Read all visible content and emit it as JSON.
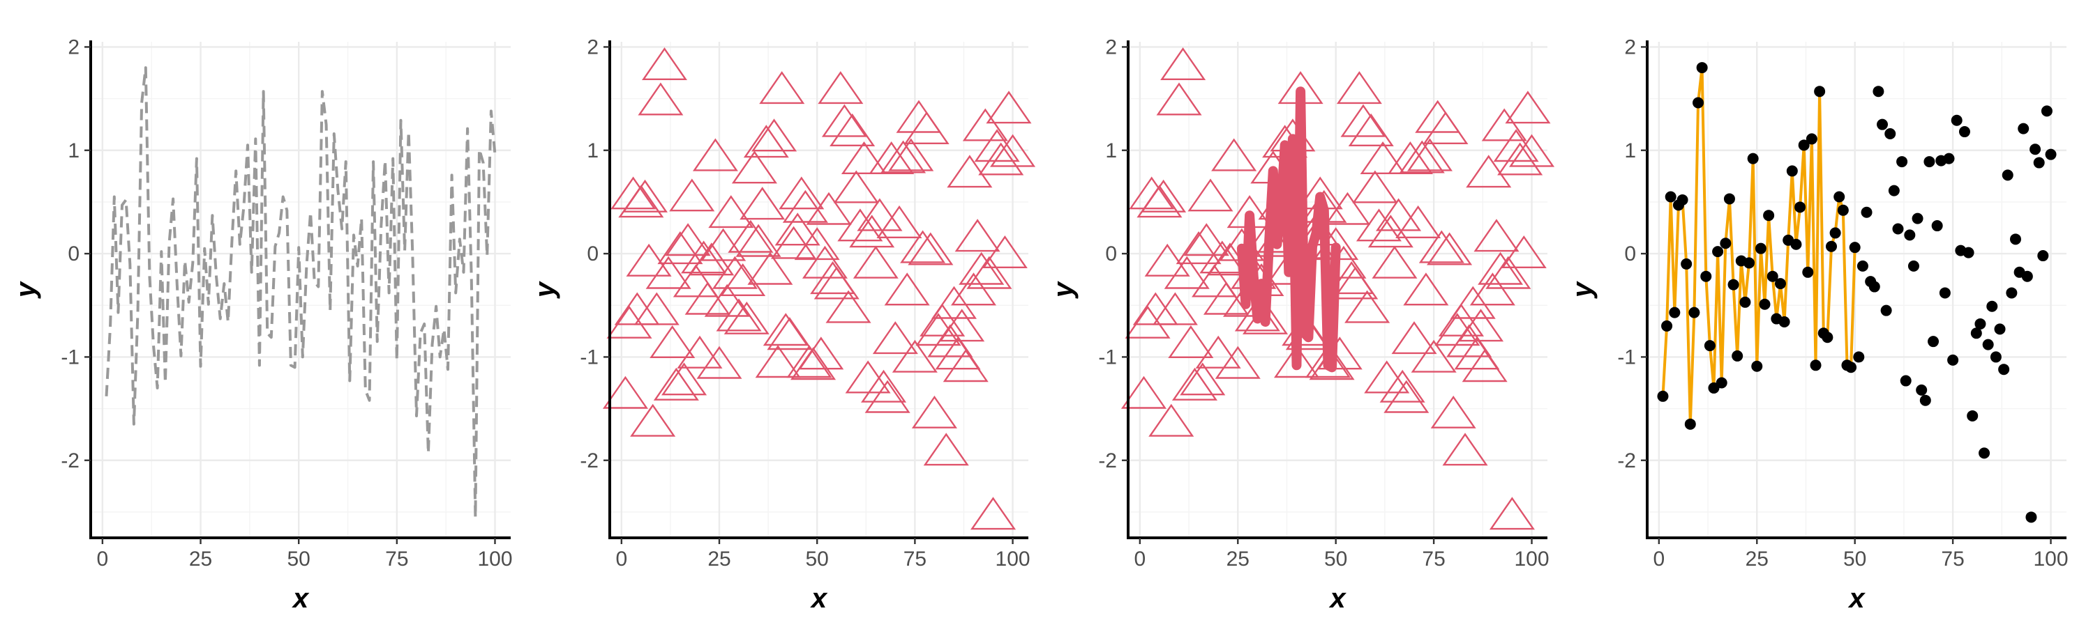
{
  "chart_data": [
    {
      "type": "line",
      "xlabel": "x",
      "ylabel": "y",
      "xlim": [
        -3,
        104
      ],
      "ylim": [
        -2.75,
        2.05
      ],
      "xticks": [
        0,
        25,
        50,
        75,
        100
      ],
      "yticks": [
        2,
        1,
        0,
        -1,
        -2
      ],
      "xtick_labels": [
        "0",
        "25",
        "50",
        "75",
        "100"
      ],
      "ytick_labels": [
        "2",
        "1",
        "0",
        "-1",
        "-2"
      ],
      "grid": true,
      "layers": [
        {
          "geom": "line",
          "linetype": "dashed",
          "color": "#999999",
          "line_width": 4,
          "source": "data"
        }
      ]
    },
    {
      "type": "scatter",
      "xlabel": "x",
      "ylabel": "y",
      "xlim": [
        -3,
        104
      ],
      "ylim": [
        -2.75,
        2.05
      ],
      "xticks": [
        0,
        25,
        50,
        75,
        100
      ],
      "yticks": [
        2,
        1,
        0,
        -1,
        -2
      ],
      "xtick_labels": [
        "0",
        "25",
        "50",
        "75",
        "100"
      ],
      "ytick_labels": [
        "2",
        "1",
        "0",
        "-1",
        "-2"
      ],
      "grid": true,
      "layers": [
        {
          "geom": "point",
          "shape": "open-triangle",
          "color": "#DF536B",
          "size": 27,
          "source": "data"
        }
      ]
    },
    {
      "type": "scatter",
      "xlabel": "x",
      "ylabel": "y",
      "xlim": [
        -3,
        104
      ],
      "ylim": [
        -2.75,
        2.05
      ],
      "xticks": [
        0,
        25,
        50,
        75,
        100
      ],
      "yticks": [
        2,
        1,
        0,
        -1,
        -2
      ],
      "xtick_labels": [
        "0",
        "25",
        "50",
        "75",
        "100"
      ],
      "ytick_labels": [
        "2",
        "1",
        "0",
        "-1",
        "-2"
      ],
      "grid": true,
      "layers": [
        {
          "geom": "point",
          "shape": "open-triangle",
          "color": "#DF536B",
          "size": 27,
          "source": "data"
        },
        {
          "geom": "line",
          "color": "#DF536B",
          "line_width": 14,
          "source": "data",
          "x_range": [
            26,
            50
          ]
        }
      ]
    },
    {
      "type": "scatter",
      "xlabel": "x",
      "ylabel": "y",
      "xlim": [
        -3,
        104
      ],
      "ylim": [
        -2.75,
        2.05
      ],
      "xticks": [
        0,
        25,
        50,
        75,
        100
      ],
      "yticks": [
        2,
        1,
        0,
        -1,
        -2
      ],
      "xtick_labels": [
        "0",
        "25",
        "50",
        "75",
        "100"
      ],
      "ytick_labels": [
        "2",
        "1",
        "0",
        "-1",
        "-2"
      ],
      "grid": true,
      "layers": [
        {
          "geom": "line",
          "color": "#F5A500",
          "line_width": 4,
          "source": "data",
          "x_range": [
            1,
            50
          ]
        },
        {
          "geom": "point",
          "shape": "filled-circle",
          "color": "#000000",
          "size": 8,
          "source": "data"
        }
      ]
    }
  ],
  "data": {
    "x": [
      1,
      2,
      3,
      4,
      5,
      6,
      7,
      8,
      9,
      10,
      11,
      12,
      13,
      14,
      15,
      16,
      17,
      18,
      19,
      20,
      21,
      22,
      23,
      24,
      25,
      26,
      27,
      28,
      29,
      30,
      31,
      32,
      33,
      34,
      35,
      36,
      37,
      38,
      39,
      40,
      41,
      42,
      43,
      44,
      45,
      46,
      47,
      48,
      49,
      50,
      51,
      52,
      53,
      54,
      55,
      56,
      57,
      58,
      59,
      60,
      61,
      62,
      63,
      64,
      65,
      66,
      67,
      68,
      69,
      70,
      71,
      72,
      73,
      74,
      75,
      76,
      77,
      78,
      79,
      80,
      81,
      82,
      83,
      84,
      85,
      86,
      87,
      88,
      89,
      90,
      91,
      92,
      93,
      94,
      95,
      96,
      97,
      98,
      99,
      100
    ],
    "y": [
      -1.38,
      -0.7,
      0.55,
      -0.57,
      0.47,
      0.52,
      -0.1,
      -1.65,
      -0.57,
      1.46,
      1.8,
      -0.22,
      -0.89,
      -1.3,
      0.02,
      -1.25,
      0.1,
      0.53,
      -0.3,
      -0.99,
      -0.07,
      -0.47,
      -0.09,
      0.92,
      -1.09,
      0.05,
      -0.49,
      0.37,
      -0.22,
      -0.63,
      -0.29,
      -0.66,
      0.13,
      0.8,
      0.09,
      0.45,
      1.05,
      -0.18,
      1.11,
      -1.08,
      1.57,
      -0.77,
      -0.81,
      0.07,
      0.2,
      0.55,
      0.42,
      -1.08,
      -1.1,
      0.06,
      -1.0,
      -0.12,
      0.4,
      -0.27,
      -0.32,
      1.57,
      1.25,
      -0.55,
      1.16,
      0.61,
      0.24,
      0.89,
      -1.23,
      0.18,
      -0.12,
      0.34,
      -1.32,
      -1.42,
      0.89,
      -0.85,
      0.27,
      0.9,
      -0.38,
      0.92,
      -1.03,
      1.29,
      0.03,
      1.18,
      0.01,
      -1.57,
      -0.77,
      -0.68,
      -1.93,
      -0.88,
      -0.51,
      -1.0,
      -0.73,
      -1.12,
      0.76,
      -0.38,
      0.14,
      -0.18,
      1.21,
      -0.22,
      -2.55,
      1.01,
      0.88,
      -0.02,
      1.38,
      0.96
    ]
  }
}
